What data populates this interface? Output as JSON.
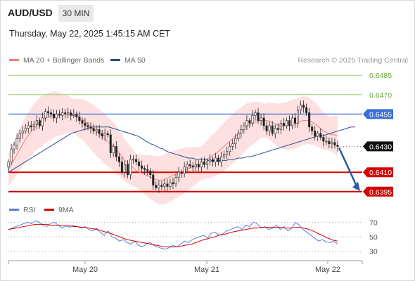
{
  "header": {
    "pair": "AUD/USD",
    "timeframe": "30 MIN",
    "datetime": "Thursday, May 22, 2025 1:45:15 AM CET",
    "credit": "Research © 2025 Trading Central"
  },
  "legend": {
    "ma20_label": "MA 20 + Bollinger Bands",
    "ma50_label": "MA 50",
    "rsi_label": "RSI",
    "rsi_ma_label": "9MA"
  },
  "colors": {
    "candle": "#222222",
    "bollinger_fill": "#fde0e0",
    "ma20": "#f08080",
    "ma50": "#2b4f8f",
    "support": "#d40000",
    "resistance_blue": "#3b6fd8",
    "resistance_green": "#9bcf6a",
    "last_price_tag": "#111111",
    "rsi": "#5b7fd8",
    "rsi_ma": "#d40000",
    "arrow": "#2b5aa8"
  },
  "chart_data": [
    {
      "type": "candlestick",
      "title": "AUD/USD",
      "x_ticks": [
        "May 20",
        "May 21",
        "May 22"
      ],
      "y_range": [
        0.639,
        0.649
      ],
      "levels": [
        {
          "value": 0.6485,
          "label": "0.6485",
          "kind": "resistance",
          "color": "green"
        },
        {
          "value": 0.647,
          "label": "0.6470",
          "kind": "resistance",
          "color": "green"
        },
        {
          "value": 0.6455,
          "label": "0.6455",
          "kind": "pivot",
          "color": "blue"
        },
        {
          "value": 0.643,
          "label": "0.6430",
          "kind": "last_price",
          "color": "black"
        },
        {
          "value": 0.641,
          "label": "0.6410",
          "kind": "support",
          "color": "red"
        },
        {
          "value": 0.6395,
          "label": "0.6395",
          "kind": "support",
          "color": "red"
        }
      ],
      "close": [
        0.6418,
        0.6428,
        0.6431,
        0.6436,
        0.644,
        0.6442,
        0.6444,
        0.6446,
        0.6445,
        0.6447,
        0.645,
        0.6446,
        0.6452,
        0.6457,
        0.6456,
        0.6455,
        0.6452,
        0.6455,
        0.6454,
        0.6456,
        0.6455,
        0.6456,
        0.6454,
        0.6455,
        0.6453,
        0.645,
        0.6448,
        0.6446,
        0.6445,
        0.6444,
        0.6442,
        0.6443,
        0.644,
        0.6438,
        0.644,
        0.6439,
        0.6425,
        0.643,
        0.6422,
        0.6418,
        0.641,
        0.6416,
        0.6408,
        0.642,
        0.642,
        0.6418,
        0.6415,
        0.6413,
        0.6412,
        0.6411,
        0.6408,
        0.64,
        0.6398,
        0.64,
        0.6399,
        0.6401,
        0.6399,
        0.6402,
        0.6401,
        0.6406,
        0.641,
        0.6409,
        0.6414,
        0.6416,
        0.6415,
        0.6414,
        0.6416,
        0.6414,
        0.6418,
        0.6416,
        0.6418,
        0.642,
        0.6418,
        0.6421,
        0.6418,
        0.6422,
        0.6424,
        0.6426,
        0.643,
        0.6432,
        0.6436,
        0.644,
        0.6443,
        0.6446,
        0.645,
        0.6448,
        0.6454,
        0.6456,
        0.645,
        0.6452,
        0.6446,
        0.6442,
        0.6446,
        0.644,
        0.6444,
        0.6443,
        0.6448,
        0.6446,
        0.645,
        0.6446,
        0.6452,
        0.6448,
        0.6458,
        0.6462,
        0.646,
        0.6456,
        0.6445,
        0.6442,
        0.6438,
        0.644,
        0.6437,
        0.6434,
        0.6434,
        0.6432,
        0.6433,
        0.6431,
        0.643
      ],
      "ma20": [
        0.6412,
        0.6416,
        0.642,
        0.6424,
        0.6428,
        0.6432,
        0.6436,
        0.6439,
        0.6442,
        0.6445,
        0.6447,
        0.6449,
        0.6451,
        0.6452,
        0.6453,
        0.6454,
        0.6455,
        0.6455,
        0.6455,
        0.6455,
        0.6455,
        0.6455,
        0.6454,
        0.6453,
        0.6452,
        0.6451,
        0.645,
        0.6448,
        0.6446,
        0.6444,
        0.6442,
        0.644,
        0.6438,
        0.6436,
        0.6434,
        0.6432,
        0.643,
        0.6428,
        0.6425,
        0.6422,
        0.6419,
        0.6417,
        0.6415,
        0.6413,
        0.6411,
        0.641,
        0.6409,
        0.6408,
        0.6407,
        0.6406,
        0.6405,
        0.6404,
        0.6404,
        0.6404,
        0.6405,
        0.6406,
        0.6407,
        0.6408,
        0.6409,
        0.641,
        0.6411,
        0.6412,
        0.6413,
        0.6414,
        0.6415,
        0.6416,
        0.6417,
        0.6418,
        0.642,
        0.6421,
        0.6423,
        0.6424,
        0.6426,
        0.6428,
        0.643,
        0.6432,
        0.6434,
        0.6436,
        0.6438,
        0.644,
        0.6442,
        0.6444,
        0.6446,
        0.6447,
        0.6448,
        0.6449,
        0.645,
        0.645,
        0.645,
        0.645,
        0.6449,
        0.6448,
        0.6447,
        0.6446,
        0.6446,
        0.6446,
        0.6446,
        0.6447,
        0.6447,
        0.6448,
        0.6449,
        0.645,
        0.645,
        0.645,
        0.6449,
        0.6448,
        0.6446,
        0.6444,
        0.6442,
        0.6441,
        0.644,
        0.6439,
        0.6439,
        0.6438
      ],
      "ma50": [
        0.641,
        0.6412,
        0.6414,
        0.6416,
        0.6418,
        0.642,
        0.6422,
        0.6424,
        0.6426,
        0.6428,
        0.643,
        0.6432,
        0.6434,
        0.6436,
        0.6438,
        0.644,
        0.6441,
        0.6442,
        0.6443,
        0.6444,
        0.6445,
        0.6445,
        0.6445,
        0.6445,
        0.6445,
        0.6444,
        0.6443,
        0.6442,
        0.6441,
        0.644,
        0.6439,
        0.6438,
        0.6436,
        0.6434,
        0.6432,
        0.6431,
        0.6429,
        0.6428,
        0.6426,
        0.6425,
        0.6424,
        0.6423,
        0.6422,
        0.6421,
        0.6421,
        0.642,
        0.642,
        0.642,
        0.6419,
        0.6419,
        0.6419,
        0.6419,
        0.6419,
        0.642,
        0.642,
        0.6421,
        0.6421,
        0.6422,
        0.6422,
        0.6423,
        0.6424,
        0.6425,
        0.6426,
        0.6427,
        0.6428,
        0.6429,
        0.643,
        0.6431,
        0.6432,
        0.6433,
        0.6434,
        0.6435,
        0.6436,
        0.6437,
        0.6438,
        0.6438,
        0.6439,
        0.644,
        0.6441,
        0.6442,
        0.6443,
        0.6444,
        0.6445,
        0.6445
      ],
      "bb_width": 0.0016
    },
    {
      "type": "line",
      "title": "RSI",
      "y_ticks": [
        30,
        50,
        70
      ],
      "y_range": [
        20,
        80
      ],
      "series": [
        {
          "name": "RSI",
          "values": [
            60,
            62,
            64,
            66,
            68,
            70,
            68,
            72,
            70,
            66,
            64,
            68,
            70,
            66,
            62,
            65,
            63,
            66,
            64,
            62,
            64,
            60,
            58,
            62,
            56,
            52,
            58,
            50,
            48,
            44,
            46,
            42,
            40,
            44,
            38,
            36,
            40,
            42,
            38,
            36,
            34,
            33,
            35,
            38,
            36,
            40,
            44,
            42,
            46,
            48,
            50,
            52,
            48,
            55,
            56,
            52,
            54,
            58,
            60,
            62,
            64,
            60,
            66,
            64,
            70,
            68,
            62,
            64,
            60,
            62,
            66,
            60,
            64,
            58,
            62,
            70,
            66,
            60,
            56,
            52,
            48,
            44,
            46,
            43,
            42,
            44,
            40
          ]
        },
        {
          "name": "9MA",
          "values": [
            60,
            61,
            62,
            63,
            64,
            65,
            66,
            67,
            67,
            67,
            67,
            66,
            66,
            66,
            65,
            65,
            65,
            64,
            64,
            63,
            63,
            62,
            61,
            60,
            59,
            57,
            56,
            54,
            52,
            50,
            48,
            46,
            45,
            44,
            43,
            42,
            41,
            40,
            39,
            38,
            37,
            36,
            36,
            36,
            36,
            37,
            38,
            39,
            40,
            42,
            44,
            46,
            47,
            49,
            50,
            52,
            53,
            54,
            56,
            57,
            58,
            59,
            60,
            61,
            62,
            62,
            63,
            63,
            63,
            63,
            63,
            63,
            62,
            62,
            62,
            63,
            63,
            62,
            61,
            59,
            57,
            54,
            52,
            49,
            47,
            45,
            44
          ]
        }
      ]
    }
  ]
}
